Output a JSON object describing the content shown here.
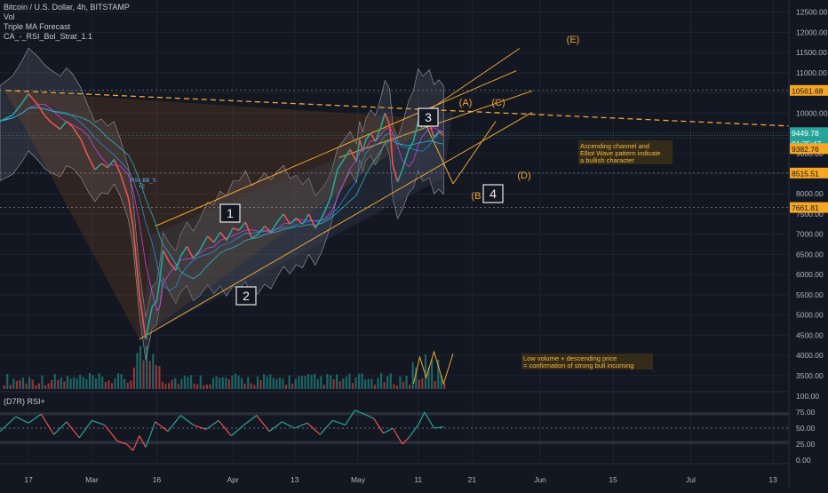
{
  "header": {
    "symbol_title": "Bitcoin / U.S. Dollar, 4h, BITSTAMP",
    "indicators": [
      "Vol",
      "Triple MA Forecast",
      "CA_-_RSI_Bol_Strat_1.1"
    ]
  },
  "rsi_pane": {
    "title": "(D7R) RSI+"
  },
  "annotations": {
    "channel_note_line1": "Ascending channel and",
    "channel_note_line2": "Elliot Wave pattern indicate",
    "channel_note_line3": "a bullish character",
    "volume_note_line1": "Low volume + descending price",
    "volume_note_line2": "= confirmation of strong bull incoming",
    "wave_1": "1",
    "wave_2": "2",
    "wave_3": "3",
    "wave_4": "4",
    "wave_A": "(A)",
    "wave_B": "(B",
    "wave_C": "(C)",
    "wave_D": "(D)",
    "wave_E": "(E)",
    "rsi_sell_tag": "RSI_BB_S",
    "rsi_sell_tag_sub": "+2"
  },
  "price_badges": {
    "level_high": "10561.68",
    "current_price": "9449.78",
    "countdown": "01:35:47",
    "level_mid": "9382.76",
    "level_low1": "8515.51",
    "level_low2": "7661.81"
  },
  "colors": {
    "background": "#131722",
    "up": "#26a69a",
    "down": "#ef5350",
    "orange": "#f0a830",
    "badge_orange": "#f5a623",
    "badge_green": "#26a69a",
    "band_fill": "#7a7f8c",
    "grid": "#1f2430",
    "text": "#b2b5be"
  },
  "chart_data": [
    {
      "type": "line",
      "title": "Bitcoin / U.S. Dollar, 4h, BITSTAMP",
      "x_ticks": [
        "17",
        "Mar",
        "16",
        "Apr",
        "13",
        "May",
        "11",
        "21",
        "Jun",
        "15",
        "Jul",
        "13"
      ],
      "x_tick_index": [
        0,
        40,
        81,
        129,
        168,
        208,
        246,
        280,
        323,
        369,
        418,
        470
      ],
      "y_ticks": [
        "12500.00",
        "12000.00",
        "11500.00",
        "11000.00",
        "10500.00",
        "10000.00",
        "9500.00",
        "9000.00",
        "8500.00",
        "8000.00",
        "7500.00",
        "7000.00",
        "6500.00",
        "6000.00",
        "5500.00",
        "5000.00",
        "4500.00",
        "4000.00",
        "3500.00"
      ],
      "ylim": [
        3100,
        12800
      ],
      "x_index_range": [
        -18,
        480
      ],
      "series": [
        {
          "x": [
            -18,
            -10,
            -4,
            0,
            6,
            10,
            14,
            20,
            24,
            28,
            33,
            38,
            42,
            46,
            50,
            54,
            58,
            63,
            66,
            70,
            74,
            78,
            81,
            83,
            85,
            89,
            93,
            96,
            100,
            104,
            108,
            113,
            117,
            121,
            125,
            129,
            133,
            137,
            141,
            145,
            149,
            153,
            157,
            161,
            165,
            169,
            173,
            177,
            181,
            185,
            188,
            191,
            195,
            199,
            203,
            207,
            209,
            211,
            213,
            216,
            219,
            222,
            225,
            228,
            230,
            233,
            236,
            240,
            243,
            246,
            249,
            253,
            256,
            259,
            262
          ],
          "y": [
            9800,
            9950,
            10250,
            10480,
            10200,
            9950,
            9780,
            9600,
            9800,
            9650,
            9350,
            8900,
            8600,
            8750,
            8650,
            8850,
            8500,
            7900,
            7200,
            5500,
            4400,
            5200,
            5350,
            5900,
            6600,
            6300,
            6100,
            6450,
            6700,
            6400,
            6600,
            6950,
            6800,
            7050,
            6850,
            7150,
            7100,
            7300,
            6900,
            7000,
            7200,
            7050,
            7300,
            7500,
            7250,
            7400,
            7250,
            7500,
            7150,
            7400,
            7650,
            7950,
            8600,
            8850,
            9100,
            8800,
            9350,
            9050,
            9350,
            9500,
            9300,
            9600,
            10000,
            9700,
            8700,
            8300,
            8600,
            9100,
            9300,
            9800,
            9600,
            9750,
            9400,
            9550,
            9449.78
          ]
        }
      ],
      "levels": [
        10561.68,
        9382.76,
        8515.51,
        7661.81
      ],
      "price_axis_badges": {
        "current": 9449.78
      }
    },
    {
      "type": "line",
      "title": "(D7R) RSI+",
      "y_ticks": [
        "100.00",
        "75.00",
        "50.00",
        "25.00",
        "0.00"
      ],
      "ylim": [
        0,
        100
      ],
      "bands": [
        70,
        50,
        30
      ],
      "series": [
        {
          "x": [
            -18,
            -8,
            0,
            8,
            16,
            24,
            32,
            40,
            48,
            56,
            62,
            66,
            70,
            74,
            80,
            88,
            96,
            104,
            112,
            120,
            128,
            136,
            144,
            152,
            160,
            168,
            176,
            184,
            192,
            200,
            206,
            212,
            218,
            224,
            230,
            236,
            240,
            246,
            250,
            256,
            262
          ],
          "y": [
            45,
            68,
            58,
            72,
            40,
            60,
            35,
            62,
            55,
            30,
            25,
            15,
            38,
            20,
            60,
            45,
            70,
            55,
            48,
            62,
            38,
            55,
            70,
            45,
            60,
            50,
            58,
            40,
            62,
            55,
            78,
            72,
            65,
            42,
            50,
            25,
            35,
            55,
            75,
            50,
            52
          ]
        }
      ]
    }
  ]
}
